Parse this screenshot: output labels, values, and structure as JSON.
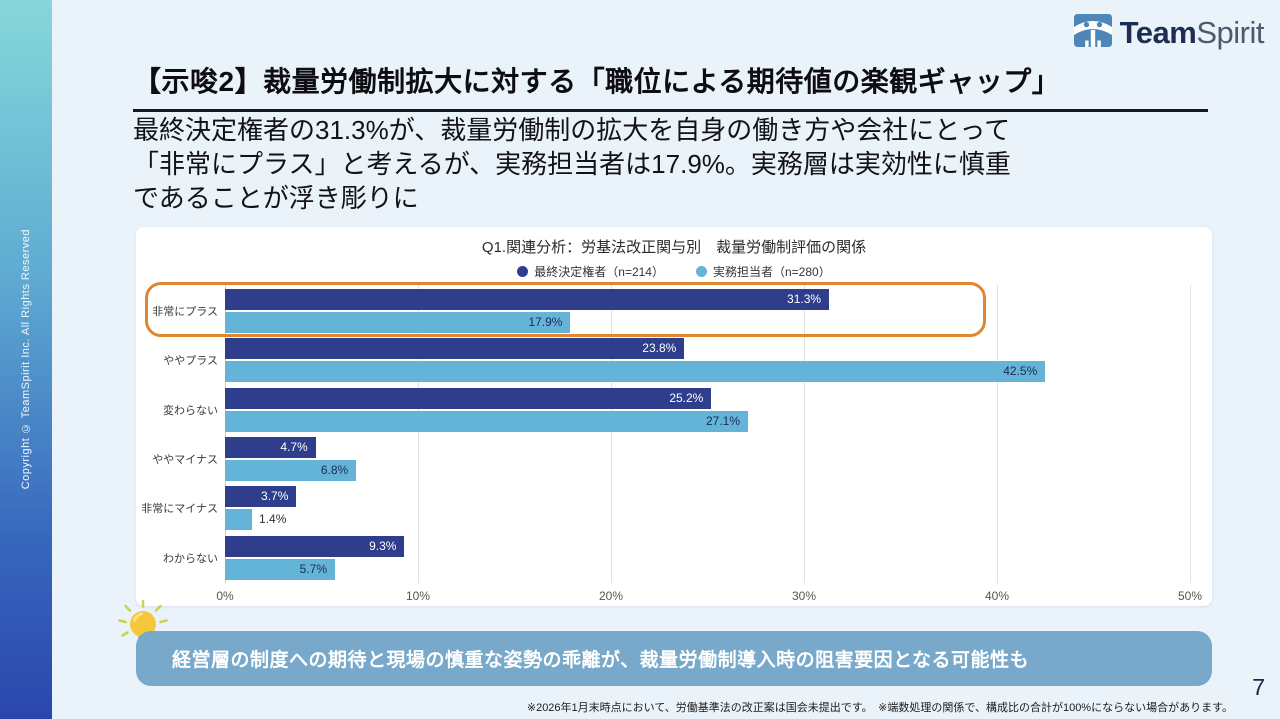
{
  "page": {
    "number": "7"
  },
  "logo": {
    "brand_bold": "Team",
    "brand_light": "Spirit"
  },
  "sidebar": {
    "copyright": "Copyright © TeamSpirit Inc. All Rights Reserved"
  },
  "header": {
    "title": "【示唆2】裁量労働制拡大に対する「職位による期待値の楽観ギャップ」"
  },
  "lead": {
    "lines": [
      "最終決定権者の31.3%が、裁量労働制の拡大を自身の働き方や会社にとって",
      "「非常にプラス」と考えるが、実務担当者は17.9%。実務層は実効性に慎重",
      "であることが浮き彫りに"
    ]
  },
  "chart_data": {
    "type": "bar",
    "orientation": "horizontal",
    "title": "Q1.関連分析：労基法改正関与別　裁量労働制評価の関係",
    "categories": [
      "非常にプラス",
      "ややプラス",
      "変わらない",
      "ややマイナス",
      "非常にマイナス",
      "わからない"
    ],
    "series": [
      {
        "name": "最終決定権者（n=214）",
        "color": "#2f3e8c",
        "value_label_color": "#ffffff",
        "values": [
          31.3,
          23.8,
          25.2,
          4.7,
          3.7,
          9.3
        ]
      },
      {
        "name": "実務担当者（n=280）",
        "color": "#64b4d8",
        "value_label_color": "#1c2a5e",
        "values": [
          17.9,
          42.5,
          27.1,
          6.8,
          1.4,
          5.7
        ]
      }
    ],
    "x_ticks": [
      "0%",
      "10%",
      "20%",
      "30%",
      "40%",
      "50%"
    ],
    "xlim": [
      0,
      50
    ],
    "grid": true,
    "legend_position": "top",
    "value_suffix": "%",
    "highlight_category_index": 0,
    "highlight_color": "#e0862f"
  },
  "callout": {
    "text": "経営層の制度への期待と現場の慎重な姿勢の乖離が、裁量労働制導入時の阻害要因となる可能性も"
  },
  "footnote": {
    "text": "※2026年1月末時点において、労働基準法の改正案は国会未提出です。　※端数処理の関係で、構成比の合計が100%にならない場合があります。"
  },
  "colors": {
    "slide_bg": "#eaf3fa",
    "sidebar_top": "#86d7db",
    "sidebar_bottom": "#2b46ad",
    "callout_bg": "#78a9cb",
    "highlight": "#e0862f"
  }
}
